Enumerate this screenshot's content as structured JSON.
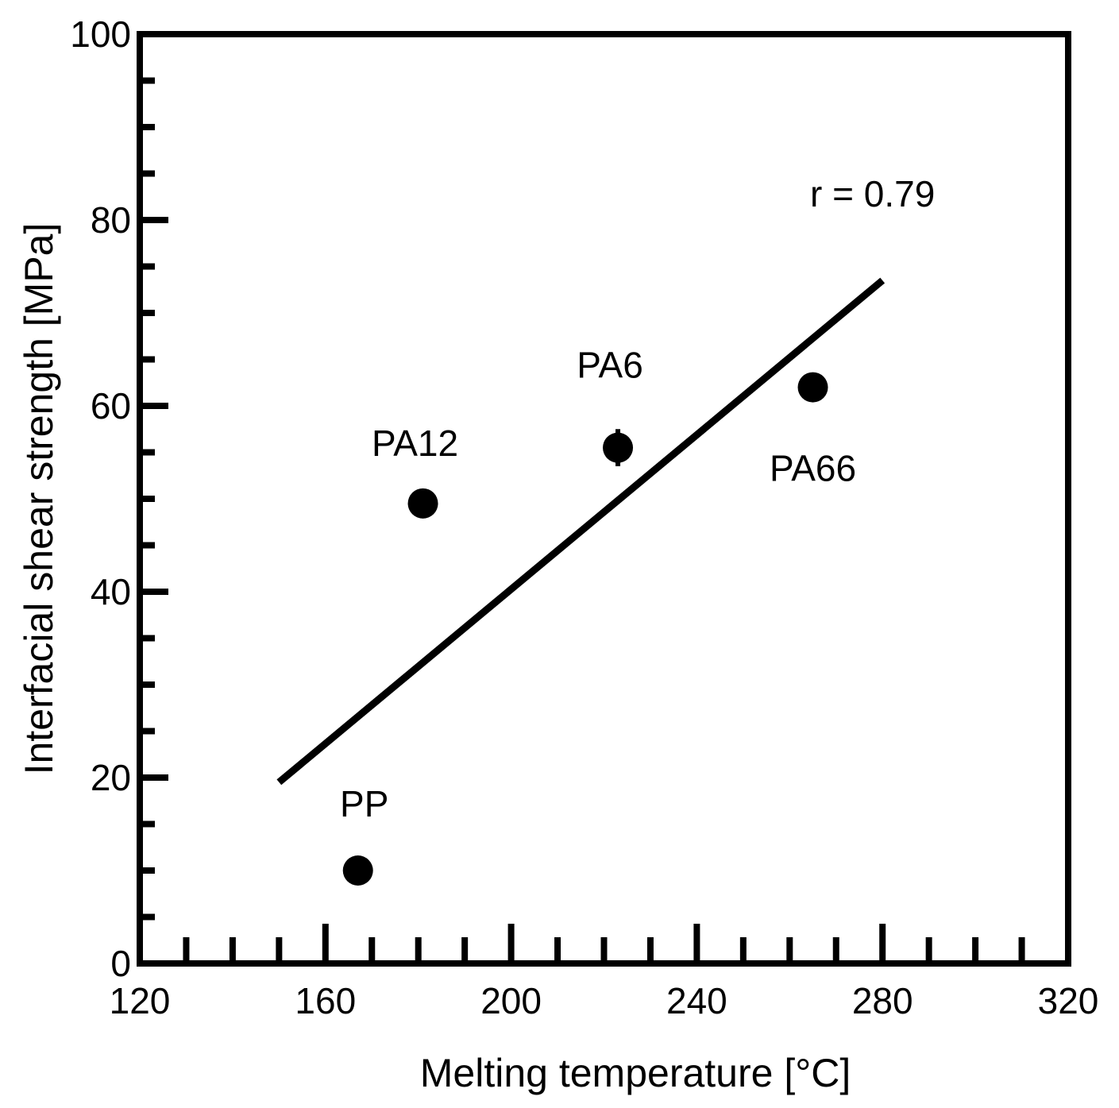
{
  "chart_data": {
    "type": "scatter",
    "title": "",
    "xlabel": "Melting temperature [°C]",
    "ylabel": "Interfacial shear strength [MPa]",
    "xlim": [
      120,
      320
    ],
    "ylim": [
      0,
      100
    ],
    "x_ticks": [
      120,
      160,
      200,
      240,
      280,
      320
    ],
    "y_ticks": [
      0,
      20,
      40,
      60,
      80,
      100
    ],
    "x_minor_step": 10,
    "y_minor_step": 5,
    "grid": false,
    "points": [
      {
        "label": "PP",
        "x": 167,
        "y": 10,
        "err": 1.5
      },
      {
        "label": "PA12",
        "x": 181,
        "y": 49.5,
        "err": 1.5
      },
      {
        "label": "PA6",
        "x": 223,
        "y": 55.5,
        "err": 2
      },
      {
        "label": "PA66",
        "x": 265,
        "y": 62,
        "err": 1.5
      }
    ],
    "trendline": {
      "x": [
        150,
        280
      ],
      "y": [
        19.5,
        73.5
      ]
    },
    "annotation": "r = 0.79",
    "colors": {
      "marker": "#000000",
      "line": "#000000"
    }
  }
}
